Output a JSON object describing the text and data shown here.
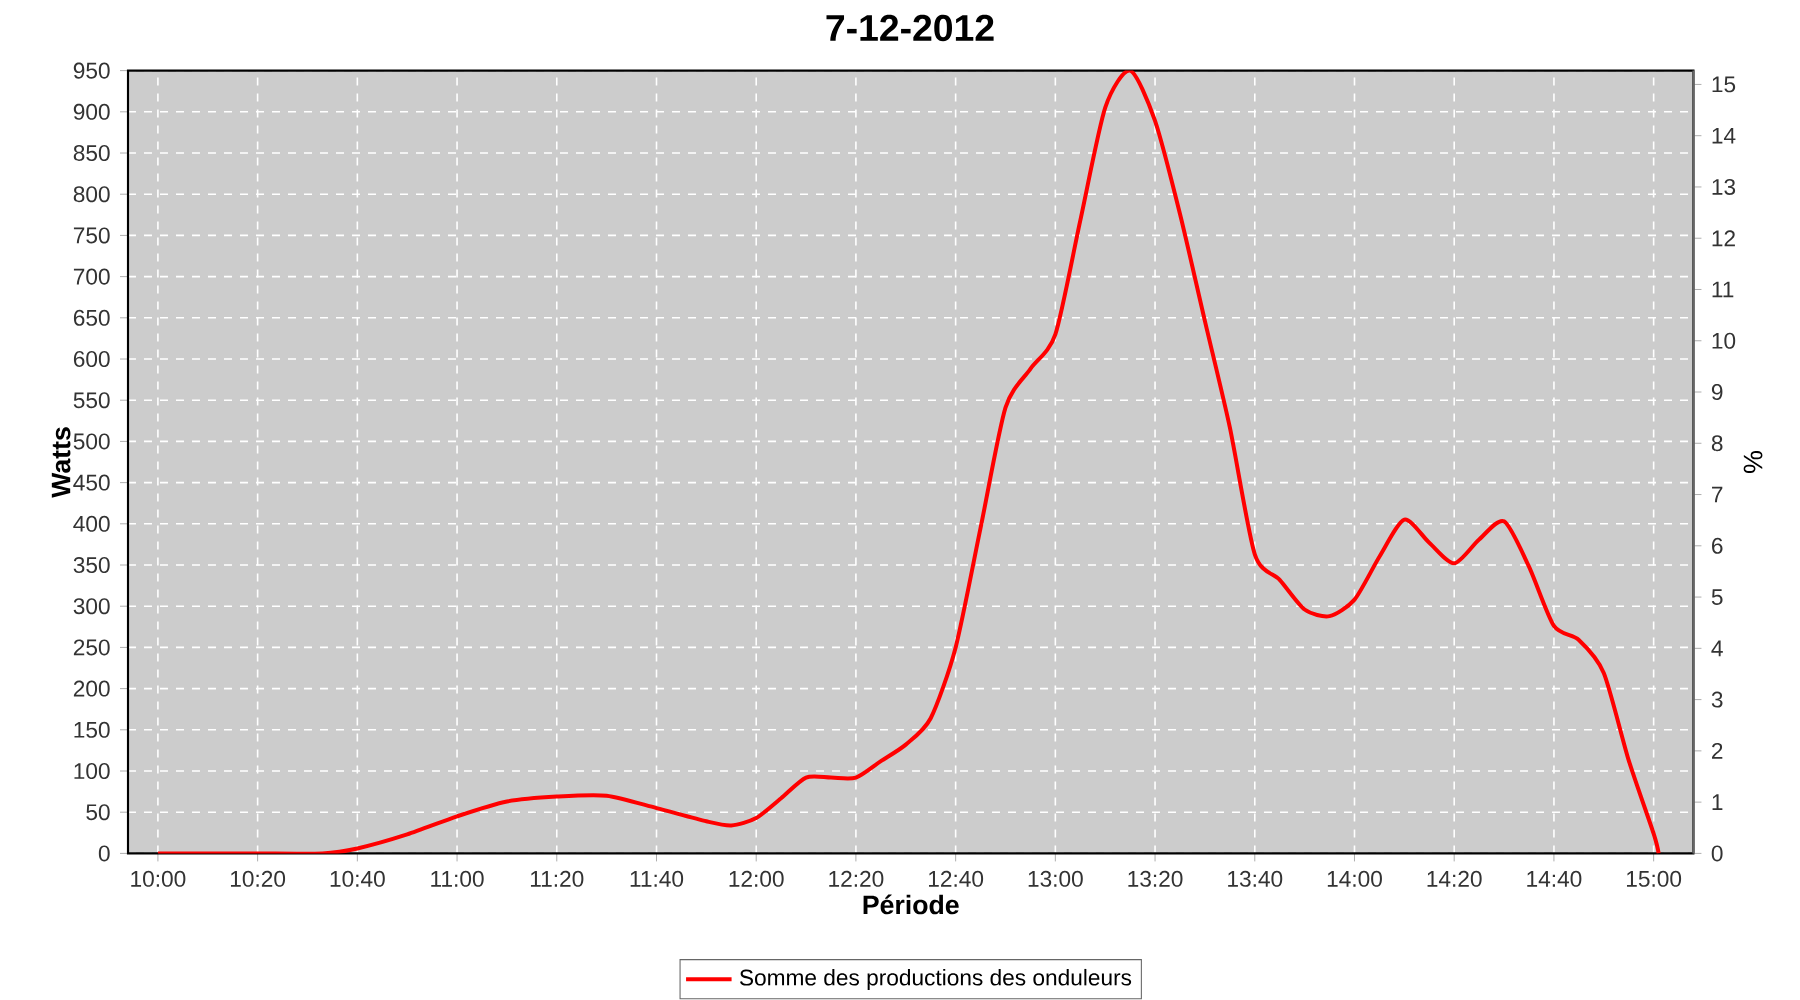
{
  "chart_data": {
    "type": "line",
    "title": "7-12-2012",
    "xlabel": "Période",
    "ylabel": "Watts",
    "y2label": "%",
    "x": [
      10.0,
      10.1667,
      10.3333,
      10.55,
      10.6667,
      10.8333,
      11.0,
      11.1667,
      11.3333,
      11.5,
      11.6667,
      11.8333,
      11.9167,
      12.0,
      12.0833,
      12.1667,
      12.25,
      12.3333,
      12.4167,
      12.5,
      12.5833,
      12.6667,
      12.75,
      12.8333,
      12.9167,
      13.0,
      13.0833,
      13.1667,
      13.25,
      13.3333,
      13.4167,
      13.5,
      13.5833,
      13.6667,
      13.75,
      13.8333,
      13.9167,
      14.0,
      14.0833,
      14.1667,
      14.25,
      14.3333,
      14.4167,
      14.5,
      14.5833,
      14.6667,
      14.75,
      14.8333,
      14.9167,
      15.0,
      15.0167
    ],
    "series": [
      {
        "name": "Somme des productions des onduleurs",
        "color": "#ff0000",
        "values": [
          0,
          0,
          0,
          0,
          6,
          23,
          45,
          63,
          69,
          70,
          55,
          39,
          34,
          43,
          67,
          92,
          92,
          92,
          112,
          132,
          164,
          250,
          395,
          541,
          588,
          630,
          768,
          905,
          950,
          889,
          776,
          646,
          517,
          363,
          332,
          296,
          288,
          308,
          360,
          405,
          377,
          352,
          381,
          403,
          348,
          276,
          259,
          219,
          113,
          24,
          0
        ]
      }
    ],
    "xlim": [
      9.9,
      15.133
    ],
    "xticks": [
      {
        "value": 10.0,
        "label": "10:00"
      },
      {
        "value": 10.3333,
        "label": "10:20"
      },
      {
        "value": 10.6667,
        "label": "10:40"
      },
      {
        "value": 11.0,
        "label": "11:00"
      },
      {
        "value": 11.3333,
        "label": "11:20"
      },
      {
        "value": 11.6667,
        "label": "11:40"
      },
      {
        "value": 12.0,
        "label": "12:00"
      },
      {
        "value": 12.3333,
        "label": "12:20"
      },
      {
        "value": 12.6667,
        "label": "12:40"
      },
      {
        "value": 13.0,
        "label": "13:00"
      },
      {
        "value": 13.3333,
        "label": "13:20"
      },
      {
        "value": 13.6667,
        "label": "13:40"
      },
      {
        "value": 14.0,
        "label": "14:00"
      },
      {
        "value": 14.3333,
        "label": "14:20"
      },
      {
        "value": 14.6667,
        "label": "14:40"
      },
      {
        "value": 15.0,
        "label": "15:00"
      }
    ],
    "ylim": [
      0,
      950
    ],
    "yticks": [
      0,
      50,
      100,
      150,
      200,
      250,
      300,
      350,
      400,
      450,
      500,
      550,
      600,
      650,
      700,
      750,
      800,
      850,
      900,
      950
    ],
    "y2lim": [
      0,
      15.27
    ],
    "y2ticks": [
      0,
      1,
      2,
      3,
      4,
      5,
      6,
      7,
      8,
      9,
      10,
      11,
      12,
      13,
      14,
      15
    ],
    "grid": true,
    "legend": "bottom",
    "marker": "none",
    "line_style": "solid"
  }
}
